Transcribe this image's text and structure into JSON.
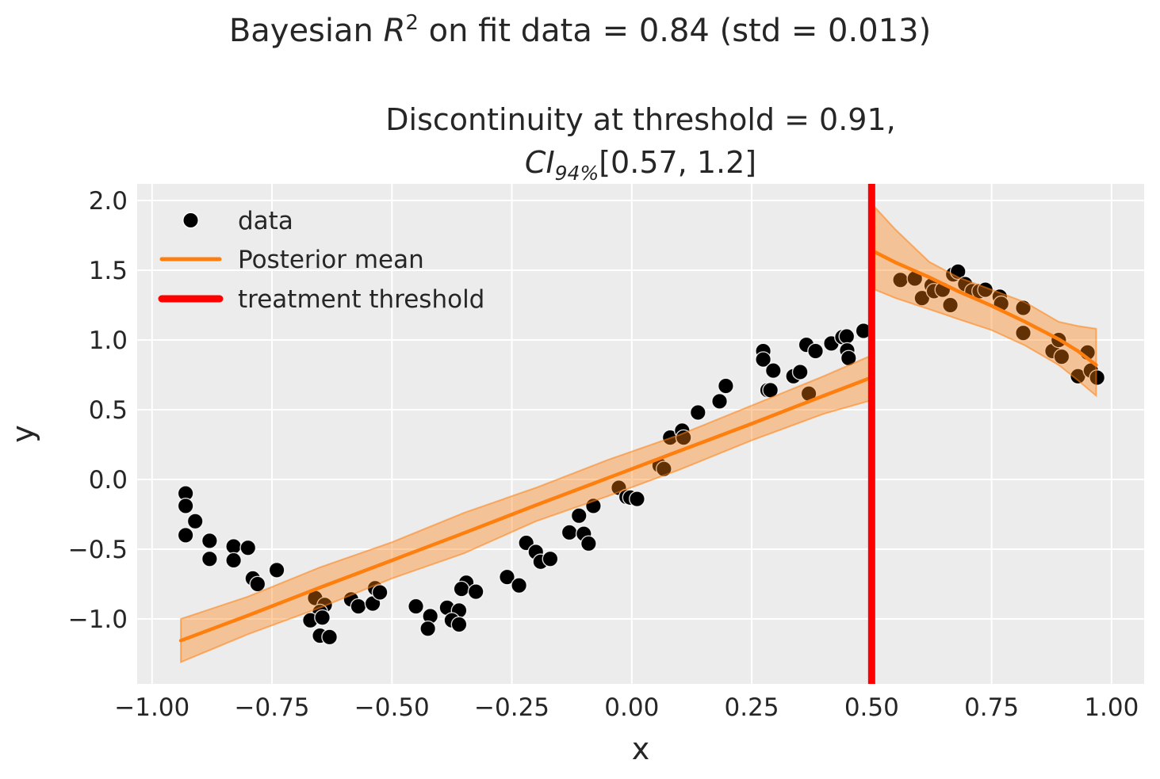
{
  "figure": {
    "title": {
      "prefix": "Bayesian ",
      "r": "R",
      "exp": "2",
      "suffix": " on fit data = 0.84 (std = 0.013)"
    },
    "subtitle": {
      "line1": "Discontinuity at threshold = 0.91,",
      "ci": "CI",
      "ci_sub": "94%",
      "ci_range": "[0.57, 1.2]"
    }
  },
  "legend": {
    "items": [
      {
        "label": "data",
        "swatch": "dot",
        "color": "#000000",
        "lw": 0
      },
      {
        "label": "Posterior mean",
        "swatch": "line",
        "color": "#ff7f0e",
        "lw": 5
      },
      {
        "label": "treatment threshold",
        "swatch": "line",
        "color": "#ff0000",
        "lw": 9
      }
    ]
  },
  "chart_data": {
    "type": "scatter",
    "title": "Bayesian R² on fit data = 0.84 (std = 0.013)",
    "subtitle": "Discontinuity at threshold = 0.91, CI94% [0.57, 1.2]",
    "xlabel": "x",
    "ylabel": "y",
    "xlim": [
      -1.031,
      1.068
    ],
    "ylim": [
      -1.466,
      2.119
    ],
    "grid": true,
    "legend_position": "upper left",
    "xticks": {
      "values": [
        -1.0,
        -0.75,
        -0.5,
        -0.25,
        0.0,
        0.25,
        0.5,
        0.75,
        1.0
      ],
      "labels": [
        "−1.00",
        "−0.75",
        "−0.50",
        "−0.25",
        "0.00",
        "0.25",
        "0.50",
        "0.75",
        "1.00"
      ]
    },
    "yticks": {
      "values": [
        2.0,
        1.5,
        1.0,
        0.5,
        0.0,
        -0.5,
        -1.0
      ],
      "labels": [
        "2.0",
        "1.5",
        "1.0",
        "0.5",
        "0.0",
        "−0.5",
        "−1.0"
      ]
    },
    "treatment_threshold_x": 0.5,
    "discontinuity": {
      "estimate": 0.91,
      "ci_level": "94%",
      "ci": [
        0.57,
        1.2
      ]
    },
    "r2": {
      "mean": 0.84,
      "std": 0.013
    },
    "scatter_points": [
      [
        -0.93,
        -0.1
      ],
      [
        -0.93,
        -0.19
      ],
      [
        -0.91,
        -0.3
      ],
      [
        -0.93,
        -0.4
      ],
      [
        -0.88,
        -0.44
      ],
      [
        -0.88,
        -0.57
      ],
      [
        -0.83,
        -0.48
      ],
      [
        -0.8,
        -0.49
      ],
      [
        -0.83,
        -0.58
      ],
      [
        -0.79,
        -0.71
      ],
      [
        -0.78,
        -0.75
      ],
      [
        -0.74,
        -0.65
      ],
      [
        -0.66,
        -0.85
      ],
      [
        -0.64,
        -0.9
      ],
      [
        -0.65,
        -0.95
      ],
      [
        -0.67,
        -1.01
      ],
      [
        -0.645,
        -0.99
      ],
      [
        -0.65,
        -1.12
      ],
      [
        -0.63,
        -1.13
      ],
      [
        -0.585,
        -0.86
      ],
      [
        -0.57,
        -0.91
      ],
      [
        -0.54,
        -0.89
      ],
      [
        -0.535,
        -0.78
      ],
      [
        -0.525,
        -0.81
      ],
      [
        -0.45,
        -0.91
      ],
      [
        -0.42,
        -0.98
      ],
      [
        -0.425,
        -1.07
      ],
      [
        -0.385,
        -0.92
      ],
      [
        -0.36,
        -0.94
      ],
      [
        -0.375,
        -1.01
      ],
      [
        -0.36,
        -1.04
      ],
      [
        -0.345,
        -0.74
      ],
      [
        -0.355,
        -0.785
      ],
      [
        -0.325,
        -0.805
      ],
      [
        -0.26,
        -0.7
      ],
      [
        -0.235,
        -0.76
      ],
      [
        -0.22,
        -0.455
      ],
      [
        -0.2,
        -0.52
      ],
      [
        -0.19,
        -0.59
      ],
      [
        -0.17,
        -0.57
      ],
      [
        -0.13,
        -0.38
      ],
      [
        -0.1,
        -0.39
      ],
      [
        -0.09,
        -0.46
      ],
      [
        -0.11,
        -0.26
      ],
      [
        -0.08,
        -0.19
      ],
      [
        -0.027,
        -0.06
      ],
      [
        -0.011,
        -0.125
      ],
      [
        -0.003,
        -0.13
      ],
      [
        0.011,
        -0.14
      ],
      [
        0.058,
        0.1
      ],
      [
        0.067,
        0.075
      ],
      [
        0.08,
        0.3
      ],
      [
        0.105,
        0.35
      ],
      [
        0.108,
        0.3
      ],
      [
        0.138,
        0.48
      ],
      [
        0.183,
        0.56
      ],
      [
        0.196,
        0.67
      ],
      [
        0.274,
        0.92
      ],
      [
        0.274,
        0.86
      ],
      [
        0.295,
        0.78
      ],
      [
        0.283,
        0.64
      ],
      [
        0.289,
        0.64
      ],
      [
        0.337,
        0.74
      ],
      [
        0.351,
        0.77
      ],
      [
        0.364,
        0.965
      ],
      [
        0.383,
        0.92
      ],
      [
        0.369,
        0.615
      ],
      [
        0.416,
        0.975
      ],
      [
        0.439,
        1.02
      ],
      [
        0.448,
        1.025
      ],
      [
        0.449,
        0.925
      ],
      [
        0.452,
        0.87
      ],
      [
        0.483,
        1.065
      ],
      [
        0.56,
        1.43
      ],
      [
        0.59,
        1.44
      ],
      [
        0.605,
        1.3
      ],
      [
        0.625,
        1.39
      ],
      [
        0.63,
        1.35
      ],
      [
        0.648,
        1.36
      ],
      [
        0.664,
        1.25
      ],
      [
        0.67,
        1.47
      ],
      [
        0.68,
        1.49
      ],
      [
        0.695,
        1.4
      ],
      [
        0.71,
        1.35
      ],
      [
        0.725,
        1.35
      ],
      [
        0.737,
        1.36
      ],
      [
        0.767,
        1.31
      ],
      [
        0.77,
        1.26
      ],
      [
        0.816,
        1.23
      ],
      [
        0.816,
        1.05
      ],
      [
        0.877,
        0.92
      ],
      [
        0.89,
        1.0
      ],
      [
        0.896,
        0.88
      ],
      [
        0.93,
        0.74
      ],
      [
        0.95,
        0.91
      ],
      [
        0.957,
        0.78
      ],
      [
        0.97,
        0.73
      ]
    ],
    "posterior_mean": [
      {
        "x": [
          -0.94,
          -0.8,
          -0.65,
          -0.5,
          -0.35,
          -0.2,
          -0.05,
          0.1,
          0.25,
          0.4,
          0.497
        ],
        "y": [
          -1.155,
          -0.975,
          -0.775,
          -0.58,
          -0.385,
          -0.185,
          0.01,
          0.205,
          0.4,
          0.6,
          0.727
        ]
      },
      {
        "x": [
          0.507,
          0.55,
          0.62,
          0.68,
          0.75,
          0.82,
          0.89,
          0.93,
          0.968
        ],
        "y": [
          1.63,
          1.555,
          1.45,
          1.35,
          1.245,
          1.13,
          1.005,
          0.92,
          0.82
        ]
      }
    ],
    "credible_band": [
      {
        "x": [
          -0.94,
          -0.8,
          -0.65,
          -0.5,
          -0.35,
          -0.2,
          -0.05,
          0.1,
          0.25,
          0.4,
          0.497
        ],
        "top": [
          -1.0,
          -0.84,
          -0.63,
          -0.45,
          -0.24,
          -0.06,
          0.14,
          0.32,
          0.53,
          0.74,
          0.885
        ],
        "bottom": [
          -1.31,
          -1.11,
          -0.92,
          -0.71,
          -0.53,
          -0.3,
          -0.12,
          0.07,
          0.28,
          0.47,
          0.565
        ]
      },
      {
        "x": [
          0.507,
          0.55,
          0.62,
          0.68,
          0.75,
          0.82,
          0.89,
          0.93,
          0.968
        ],
        "top": [
          1.95,
          1.79,
          1.56,
          1.45,
          1.36,
          1.27,
          1.13,
          1.1,
          1.08
        ],
        "bottom": [
          1.36,
          1.3,
          1.22,
          1.15,
          1.07,
          0.96,
          0.82,
          0.71,
          0.6
        ]
      }
    ],
    "colors": {
      "background": "#ececec",
      "grid": "#ffffff",
      "scatter": "#000000",
      "posterior_mean": "#ff7f0e",
      "band_fill": "#ff7f0e",
      "band_alpha": 0.38,
      "threshold": "#ff0000",
      "text": "#262626"
    }
  }
}
